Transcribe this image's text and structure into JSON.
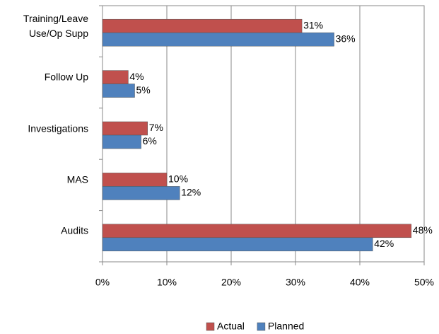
{
  "chart_data": {
    "type": "hbar",
    "categories": [
      "Training/Leave Use/Op Supp",
      "Follow Up",
      "Investigations",
      "MAS",
      "Audits"
    ],
    "series": [
      {
        "name": "Actual",
        "color": "#c0504d",
        "values": [
          31,
          4,
          7,
          10,
          48
        ],
        "value_labels": [
          "31%",
          "4%",
          "7%",
          "10%",
          "48%"
        ]
      },
      {
        "name": "Planned",
        "color": "#4f81bd",
        "values": [
          36,
          5,
          6,
          12,
          42
        ],
        "value_labels": [
          "36%",
          "5%",
          "6%",
          "12%",
          "42%"
        ]
      }
    ],
    "xlim": [
      0,
      50
    ],
    "xticks": [
      {
        "value": 0,
        "label": "0%"
      },
      {
        "value": 10,
        "label": "10%"
      },
      {
        "value": 20,
        "label": "20%"
      },
      {
        "value": 30,
        "label": "30%"
      },
      {
        "value": 40,
        "label": "40%"
      },
      {
        "value": 50,
        "label": "50%"
      }
    ],
    "grid": true,
    "legend": "bottom"
  }
}
